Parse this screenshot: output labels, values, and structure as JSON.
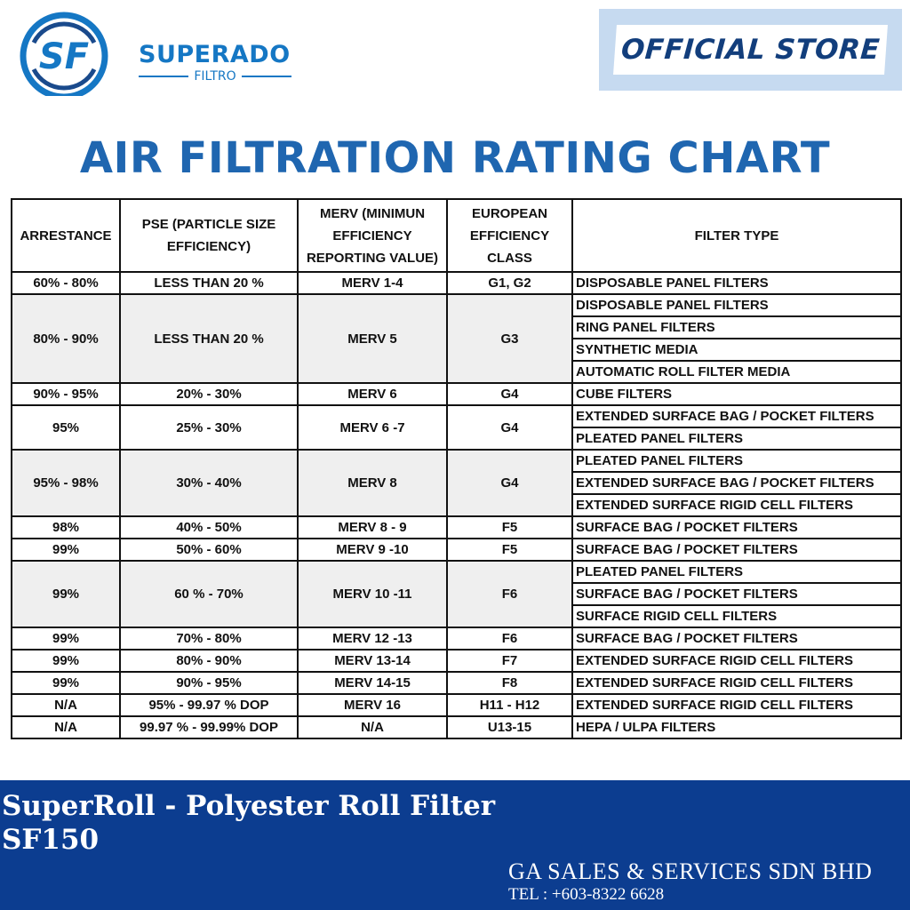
{
  "brand": {
    "name": "SUPERADO",
    "sub": "FILTRO",
    "monogram": "SF"
  },
  "badge": {
    "label": "OFFICIAL STORE"
  },
  "title": "AIR FILTRATION RATING CHART",
  "table": {
    "headers": [
      "ARRESTANCE",
      "PSE (PARTICLE SIZE EFFICIENCY)",
      "MERV (MINIMUN EFFICIENCY REPORTING VALUE)",
      "EUROPEAN EFFICIENCY CLASS",
      "FILTER TYPE"
    ],
    "groups": [
      {
        "arrestance": "60% - 80%",
        "pse": "LESS THAN 20 %",
        "merv": "MERV 1-4",
        "eu": "G1, G2",
        "types": [
          "DISPOSABLE PANEL FILTERS"
        ]
      },
      {
        "arrestance": "80% - 90%",
        "pse": "LESS THAN 20 %",
        "merv": "MERV 5",
        "eu": "G3",
        "types": [
          "DISPOSABLE PANEL FILTERS",
          "RING PANEL FILTERS",
          "SYNTHETIC MEDIA",
          "AUTOMATIC ROLL FILTER MEDIA"
        ]
      },
      {
        "arrestance": "90% - 95%",
        "pse": "20% - 30%",
        "merv": "MERV 6",
        "eu": "G4",
        "types": [
          "CUBE FILTERS"
        ]
      },
      {
        "arrestance": "95%",
        "pse": "25% - 30%",
        "merv": "MERV 6 -7",
        "eu": "G4",
        "types": [
          "EXTENDED SURFACE BAG / POCKET FILTERS",
          "PLEATED PANEL FILTERS"
        ]
      },
      {
        "arrestance": "95% - 98%",
        "pse": "30% - 40%",
        "merv": "MERV 8",
        "eu": "G4",
        "types": [
          "PLEATED PANEL FILTERS",
          "EXTENDED SURFACE BAG / POCKET FILTERS",
          "EXTENDED SURFACE RIGID CELL FILTERS"
        ]
      },
      {
        "arrestance": "98%",
        "pse": "40% - 50%",
        "merv": "MERV 8 - 9",
        "eu": "F5",
        "types": [
          "SURFACE BAG / POCKET FILTERS"
        ]
      },
      {
        "arrestance": "99%",
        "pse": "50% - 60%",
        "merv": "MERV 9 -10",
        "eu": "F5",
        "types": [
          "SURFACE BAG / POCKET FILTERS"
        ]
      },
      {
        "arrestance": "99%",
        "pse": "60 % - 70%",
        "merv": "MERV 10 -11",
        "eu": "F6",
        "types": [
          "PLEATED PANEL FILTERS",
          "SURFACE BAG / POCKET FILTERS",
          "SURFACE RIGID CELL FILTERS"
        ]
      },
      {
        "arrestance": "99%",
        "pse": "70% - 80%",
        "merv": "MERV 12 -13",
        "eu": "F6",
        "types": [
          "SURFACE BAG / POCKET FILTERS"
        ]
      },
      {
        "arrestance": "99%",
        "pse": "80% - 90%",
        "merv": "MERV 13-14",
        "eu": "F7",
        "types": [
          "EXTENDED SURFACE RIGID CELL FILTERS"
        ]
      },
      {
        "arrestance": "99%",
        "pse": "90% - 95%",
        "merv": "MERV 14-15",
        "eu": "F8",
        "types": [
          "EXTENDED SURFACE RIGID CELL FILTERS"
        ]
      },
      {
        "arrestance": "N/A",
        "pse": "95% - 99.97 % DOP",
        "merv": "MERV 16",
        "eu": "H11 - H12",
        "types": [
          "EXTENDED SURFACE RIGID CELL FILTERS"
        ]
      },
      {
        "arrestance": "N/A",
        "pse": "99.97 % - 99.99% DOP",
        "merv": "N/A",
        "eu": "U13-15",
        "types": [
          "HEPA / ULPA FILTERS"
        ]
      }
    ]
  },
  "footer": {
    "product_line1": "SuperRoll - Polyester Roll Filter",
    "product_line2": "SF150",
    "company": "GA SALES & SERVICES SDN BHD",
    "phone": "TEL : +603-8322 6628"
  }
}
